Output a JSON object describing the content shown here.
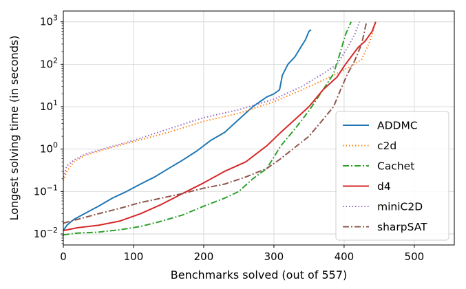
{
  "chart_data": {
    "type": "line",
    "xlabel": "Benchmarks solved (out of 557)",
    "ylabel": "Longest solving time (in seconds)",
    "xlim": [
      0,
      557
    ],
    "ylim": [
      0.0055,
      1800
    ],
    "yscale": "log",
    "grid": true,
    "legend_position": "lower-right",
    "x_ticks": [
      {
        "value": 0,
        "label": "0"
      },
      {
        "value": 100,
        "label": "100"
      },
      {
        "value": 200,
        "label": "200"
      },
      {
        "value": 300,
        "label": "300"
      },
      {
        "value": 400,
        "label": "400"
      },
      {
        "value": 500,
        "label": "500"
      }
    ],
    "y_ticks": [
      {
        "value": 0.01,
        "base": "10",
        "exp": "−2"
      },
      {
        "value": 0.1,
        "base": "10",
        "exp": "−1"
      },
      {
        "value": 1,
        "base": "10",
        "exp": "0"
      },
      {
        "value": 10,
        "base": "10",
        "exp": "1"
      },
      {
        "value": 100,
        "base": "10",
        "exp": "2"
      },
      {
        "value": 1000,
        "base": "10",
        "exp": "3"
      }
    ],
    "series": [
      {
        "name": "ADDMC",
        "color": "#1f77b4",
        "dash": "solid",
        "points": [
          [
            0,
            0.012
          ],
          [
            5,
            0.016
          ],
          [
            15,
            0.022
          ],
          [
            30,
            0.03
          ],
          [
            50,
            0.045
          ],
          [
            70,
            0.07
          ],
          [
            90,
            0.1
          ],
          [
            110,
            0.15
          ],
          [
            130,
            0.22
          ],
          [
            150,
            0.35
          ],
          [
            170,
            0.55
          ],
          [
            190,
            0.9
          ],
          [
            210,
            1.6
          ],
          [
            230,
            2.5
          ],
          [
            250,
            5
          ],
          [
            270,
            10
          ],
          [
            290,
            17
          ],
          [
            300,
            20
          ],
          [
            308,
            25
          ],
          [
            312,
            55
          ],
          [
            320,
            100
          ],
          [
            330,
            150
          ],
          [
            340,
            280
          ],
          [
            345,
            380
          ],
          [
            350,
            600
          ],
          [
            353,
            650
          ]
        ]
      },
      {
        "name": "c2d",
        "color": "#ff7f0e",
        "dash": "dotted",
        "points": [
          [
            0,
            0.18
          ],
          [
            5,
            0.3
          ],
          [
            15,
            0.5
          ],
          [
            30,
            0.7
          ],
          [
            60,
            1.0
          ],
          [
            100,
            1.5
          ],
          [
            150,
            2.5
          ],
          [
            200,
            4.5
          ],
          [
            250,
            7
          ],
          [
            300,
            13
          ],
          [
            340,
            25
          ],
          [
            380,
            50
          ],
          [
            410,
            90
          ],
          [
            425,
            130
          ],
          [
            435,
            300
          ],
          [
            440,
            500
          ],
          [
            445,
            1000
          ]
        ]
      },
      {
        "name": "Cachet",
        "color": "#2ca02c",
        "dash": "dashdot",
        "points": [
          [
            0,
            0.0095
          ],
          [
            20,
            0.0105
          ],
          [
            50,
            0.011
          ],
          [
            80,
            0.0125
          ],
          [
            110,
            0.015
          ],
          [
            140,
            0.02
          ],
          [
            170,
            0.028
          ],
          [
            200,
            0.045
          ],
          [
            230,
            0.07
          ],
          [
            250,
            0.1
          ],
          [
            270,
            0.2
          ],
          [
            290,
            0.35
          ],
          [
            310,
            1.2
          ],
          [
            330,
            3
          ],
          [
            350,
            8
          ],
          [
            370,
            25
          ],
          [
            385,
            60
          ],
          [
            395,
            200
          ],
          [
            402,
            500
          ],
          [
            410,
            1000
          ]
        ]
      },
      {
        "name": "d4",
        "color": "#d62728",
        "dash": "solid",
        "points": [
          [
            0,
            0.012
          ],
          [
            20,
            0.014
          ],
          [
            50,
            0.016
          ],
          [
            80,
            0.02
          ],
          [
            110,
            0.03
          ],
          [
            140,
            0.05
          ],
          [
            170,
            0.09
          ],
          [
            200,
            0.16
          ],
          [
            230,
            0.3
          ],
          [
            260,
            0.5
          ],
          [
            290,
            1.2
          ],
          [
            310,
            2.5
          ],
          [
            330,
            5
          ],
          [
            350,
            10
          ],
          [
            370,
            25
          ],
          [
            390,
            50
          ],
          [
            400,
            90
          ],
          [
            410,
            150
          ],
          [
            420,
            250
          ],
          [
            430,
            350
          ],
          [
            440,
            600
          ],
          [
            445,
            1000
          ]
        ]
      },
      {
        "name": "miniC2D",
        "color": "#9467bd",
        "dash": "dotted",
        "points": [
          [
            0,
            0.22
          ],
          [
            5,
            0.4
          ],
          [
            15,
            0.55
          ],
          [
            30,
            0.75
          ],
          [
            60,
            1.05
          ],
          [
            100,
            1.6
          ],
          [
            150,
            3
          ],
          [
            200,
            5.5
          ],
          [
            250,
            8.5
          ],
          [
            300,
            15
          ],
          [
            340,
            30
          ],
          [
            370,
            60
          ],
          [
            390,
            100
          ],
          [
            405,
            250
          ],
          [
            415,
            500
          ],
          [
            422,
            1000
          ]
        ]
      },
      {
        "name": "sharpSAT",
        "color": "#8c564b",
        "dash": "dashdot",
        "points": [
          [
            0,
            0.018
          ],
          [
            20,
            0.022
          ],
          [
            50,
            0.03
          ],
          [
            80,
            0.04
          ],
          [
            110,
            0.055
          ],
          [
            140,
            0.07
          ],
          [
            170,
            0.09
          ],
          [
            200,
            0.12
          ],
          [
            230,
            0.15
          ],
          [
            260,
            0.22
          ],
          [
            290,
            0.35
          ],
          [
            310,
            0.6
          ],
          [
            330,
            1.1
          ],
          [
            350,
            2
          ],
          [
            370,
            5
          ],
          [
            385,
            10
          ],
          [
            395,
            25
          ],
          [
            405,
            60
          ],
          [
            415,
            120
          ],
          [
            425,
            300
          ],
          [
            432,
            1000
          ]
        ]
      }
    ]
  }
}
